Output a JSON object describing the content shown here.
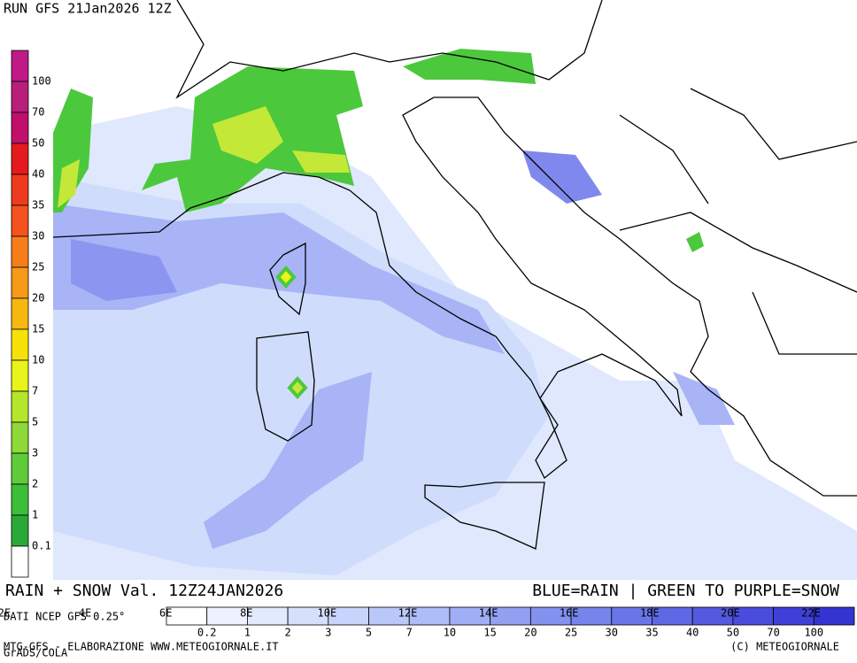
{
  "header": {
    "run": "RUN GFS 21Jan2026 12Z"
  },
  "left_scale": {
    "labels": [
      "100",
      "70",
      "50",
      "40",
      "35",
      "30",
      "25",
      "20",
      "15",
      "10",
      "7",
      "5",
      "3",
      "2",
      "1",
      "0.1"
    ],
    "colors": [
      "#c01a86",
      "#b81e7a",
      "#c0106c",
      "#e41a1c",
      "#ee3a1e",
      "#f4521e",
      "#f77d1b",
      "#f59a16",
      "#f5b80e",
      "#f6e208",
      "#e8f41a",
      "#b6e62c",
      "#8ed838",
      "#5ecc3a",
      "#3cbe3a",
      "#2aa83a",
      "#ffffff"
    ]
  },
  "footer": {
    "title_left": "RAIN + SNOW Val. 12Z24JAN2026",
    "title_right": "BLUE=RAIN | GREEN TO PURPLE=SNOW",
    "source": "DATI NCEP GFS 0.25°",
    "grads": "GrADS/COLA",
    "credit_left": "MTG-GFS - ELABORAZIONE WWW.METEOGIORNALE.IT",
    "credit_right": "(C) METEOGIORNALE"
  },
  "longitudes": [
    "2E",
    "4E",
    "6E",
    "8E",
    "10E",
    "12E",
    "14E",
    "16E",
    "18E",
    "20E",
    "22E"
  ],
  "bottom_scale": {
    "labels": [
      "0.2",
      "1",
      "2",
      "3",
      "5",
      "7",
      "10",
      "15",
      "20",
      "25",
      "30",
      "35",
      "40",
      "50",
      "70",
      "100"
    ],
    "colors": [
      "#ffffff",
      "#eef2fe",
      "#e2eafd",
      "#d6e0fc",
      "#c8d4fb",
      "#bac8f9",
      "#aebcf7",
      "#a0aef5",
      "#92a0f2",
      "#8492ef",
      "#7684ec",
      "#6a76e8",
      "#5e68e4",
      "#545ae0",
      "#4a4cdc",
      "#4040d8",
      "#3434d0"
    ]
  }
}
